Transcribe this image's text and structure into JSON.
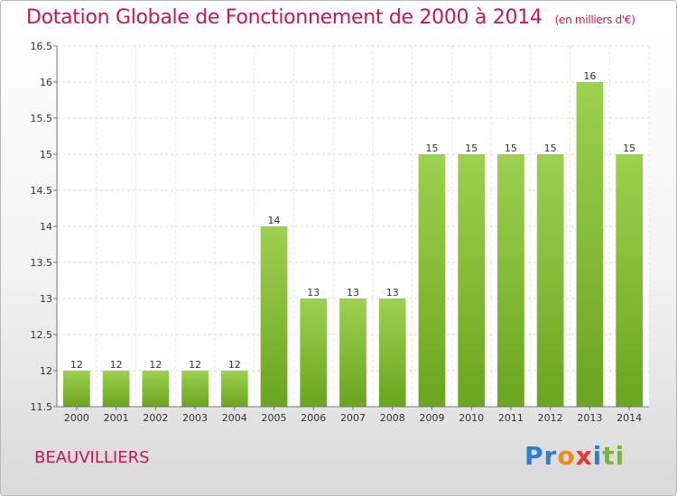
{
  "chart_data": {
    "type": "bar",
    "title": "Dotation Globale de Fonctionnement de 2000 à 2014",
    "unit_note": "(en milliers d'€)",
    "categories": [
      "2000",
      "2001",
      "2002",
      "2003",
      "2004",
      "2005",
      "2006",
      "2007",
      "2008",
      "2009",
      "2010",
      "2011",
      "2012",
      "2013",
      "2014"
    ],
    "values": [
      12,
      12,
      12,
      12,
      12,
      14,
      13,
      13,
      13,
      15,
      15,
      15,
      15,
      16,
      15
    ],
    "data_labels": [
      "12",
      "12",
      "12",
      "12",
      "12",
      "14",
      "13",
      "13",
      "13",
      "15",
      "15",
      "15",
      "15",
      "16",
      "15"
    ],
    "yticks": [
      11.5,
      12,
      12.5,
      13,
      13.5,
      14,
      14.5,
      15,
      15.5,
      16,
      16.5
    ],
    "ytick_labels": [
      "11.5",
      "12",
      "12.5",
      "13",
      "13.5",
      "14",
      "14.5",
      "15",
      "15.5",
      "16",
      "16.5"
    ],
    "ylim": [
      11.5,
      16.5
    ],
    "grid": true,
    "bar_color_top": "#9dd14f",
    "bar_color_bottom": "#6aa51e",
    "title_color": "#c2185b"
  },
  "town": "BEAUVILLIERS",
  "logo": {
    "parts": [
      "Pr",
      "o",
      "x",
      "i",
      "ti"
    ]
  }
}
